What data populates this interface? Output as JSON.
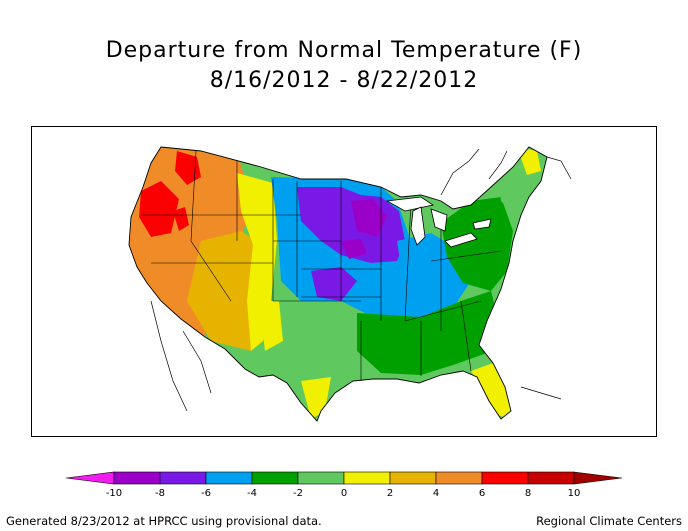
{
  "title": {
    "line1": "Departure from Normal Temperature (F)",
    "line2": "8/16/2012 - 8/22/2012"
  },
  "legend": {
    "ticks": [
      "-10",
      "-8",
      "-6",
      "-4",
      "-2",
      "0",
      "2",
      "4",
      "6",
      "8",
      "10"
    ],
    "colors": [
      "#f01cf0",
      "#9b00c8",
      "#7a19e6",
      "#00a0f0",
      "#00a000",
      "#5fc85f",
      "#f0f000",
      "#e6b400",
      "#f08c28",
      "#fa0000",
      "#c80000",
      "#a00000"
    ]
  },
  "map": {
    "regions": [
      {
        "name": "far-west",
        "anomaly": 5
      },
      {
        "name": "northwest-interior",
        "anomaly": 5
      },
      {
        "name": "southwest",
        "anomaly": 3
      },
      {
        "name": "rockies",
        "anomaly": 1
      },
      {
        "name": "northern-plains",
        "anomaly": -5
      },
      {
        "name": "upper-midwest",
        "anomaly": -7
      },
      {
        "name": "central-plains",
        "anomaly": -6
      },
      {
        "name": "ohio-valley",
        "anomaly": -5
      },
      {
        "name": "texas",
        "anomaly": -1
      },
      {
        "name": "southeast",
        "anomaly": -3
      },
      {
        "name": "mid-atlantic",
        "anomaly": -3
      },
      {
        "name": "new-england",
        "anomaly": -1
      },
      {
        "name": "florida",
        "anomaly": 1
      }
    ]
  },
  "footer": {
    "left": "Generated 8/23/2012 at HPRCC using provisional data.",
    "right": "Regional Climate Centers"
  }
}
